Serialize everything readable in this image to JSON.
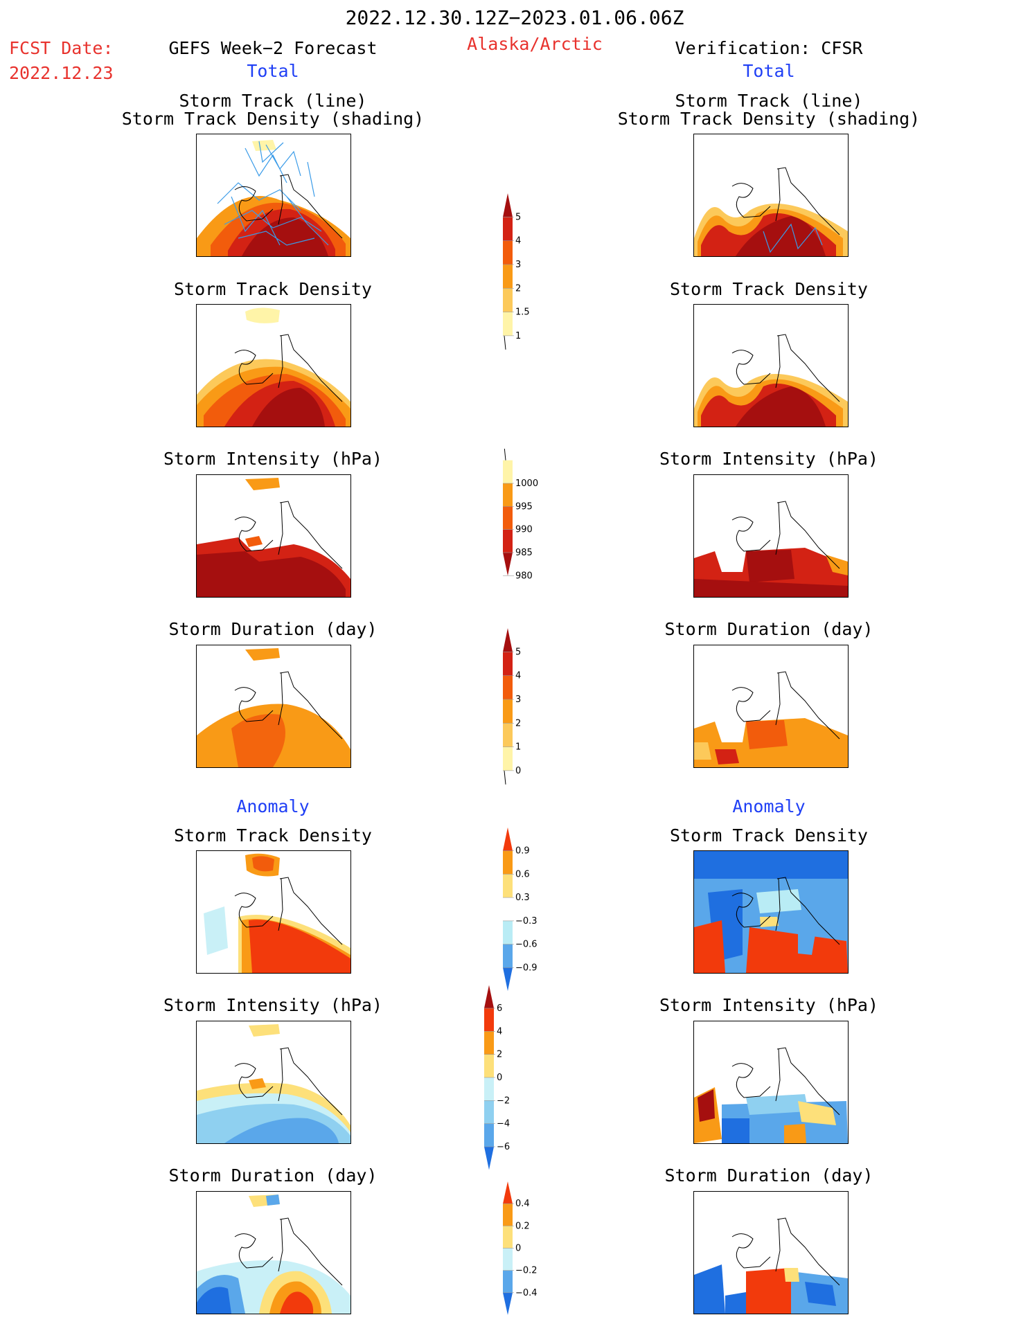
{
  "header": {
    "date_range": "2022.12.30.12Z−2023.01.06.06Z",
    "fcst_label": "FCST Date:",
    "fcst_date": "2022.12.23",
    "left_title": "GEFS Week−2 Forecast",
    "center_title": "Alaska/Arctic",
    "right_title": "Verification: CFSR"
  },
  "sections": {
    "total": "Total",
    "anomaly": "Anomaly"
  },
  "panel_titles": {
    "track_line": "Storm Track (line)",
    "track_density_shading": "Storm Track Density (shading)",
    "track_density": "Storm Track Density",
    "intensity": "Storm Intensity (hPa)",
    "duration": "Storm Duration (day)"
  },
  "colorbars": [
    {
      "labels": [
        "5",
        "4",
        "3",
        "2",
        "1.5",
        "1"
      ],
      "colors": [
        "#a50f0f",
        "#d32214",
        "#f25c0c",
        "#f99a16",
        "#fcc95a",
        "#fff4a8"
      ]
    },
    {
      "labels": [
        "1000",
        "995",
        "990",
        "985",
        "980"
      ],
      "colors": [
        "#fff4a8",
        "#f99a16",
        "#f25c0c",
        "#d32214",
        "#a50f0f"
      ]
    },
    {
      "labels": [
        "5",
        "4",
        "3",
        "2",
        "1",
        "0"
      ],
      "colors": [
        "#a50f0f",
        "#d32214",
        "#f25c0c",
        "#f99a16",
        "#fcc95a",
        "#fff4a8"
      ]
    },
    {
      "labels": [
        "0.9",
        "0.6",
        "0.3",
        "−0.3",
        "−0.6",
        "−0.9"
      ],
      "colors": [
        "#f23a0c",
        "#f99a16",
        "#fde07a",
        "#ffffff",
        "#b9ecf5",
        "#5aa7ea",
        "#1f6fe0"
      ]
    },
    {
      "labels": [
        "6",
        "4",
        "2",
        "0",
        "−2",
        "−4",
        "−6"
      ],
      "colors": [
        "#a50f0f",
        "#f23a0c",
        "#f99a16",
        "#fde07a",
        "#c9f0f7",
        "#8fd0f0",
        "#5aa7ea",
        "#1f6fe0"
      ]
    },
    {
      "labels": [
        "0.4",
        "0.2",
        "0",
        "−0.2",
        "−0.4"
      ],
      "colors": [
        "#f23a0c",
        "#f99a16",
        "#fde07a",
        "#c9f0f7",
        "#5aa7ea",
        "#1f6fe0"
      ]
    }
  ],
  "palette": {
    "dark_red": "#a50f0f",
    "red": "#d32214",
    "red_orange": "#f25c0c",
    "orange": "#f99a16",
    "light_orange": "#fcc95a",
    "pale_yellow": "#fff4a8",
    "light_blue": "#b9ecf5",
    "mid_blue": "#5aa7ea",
    "blue": "#1f6fe0",
    "track_line": "#3a9be8",
    "title_red": "#e8322d",
    "title_blue": "#1f3ff5"
  }
}
